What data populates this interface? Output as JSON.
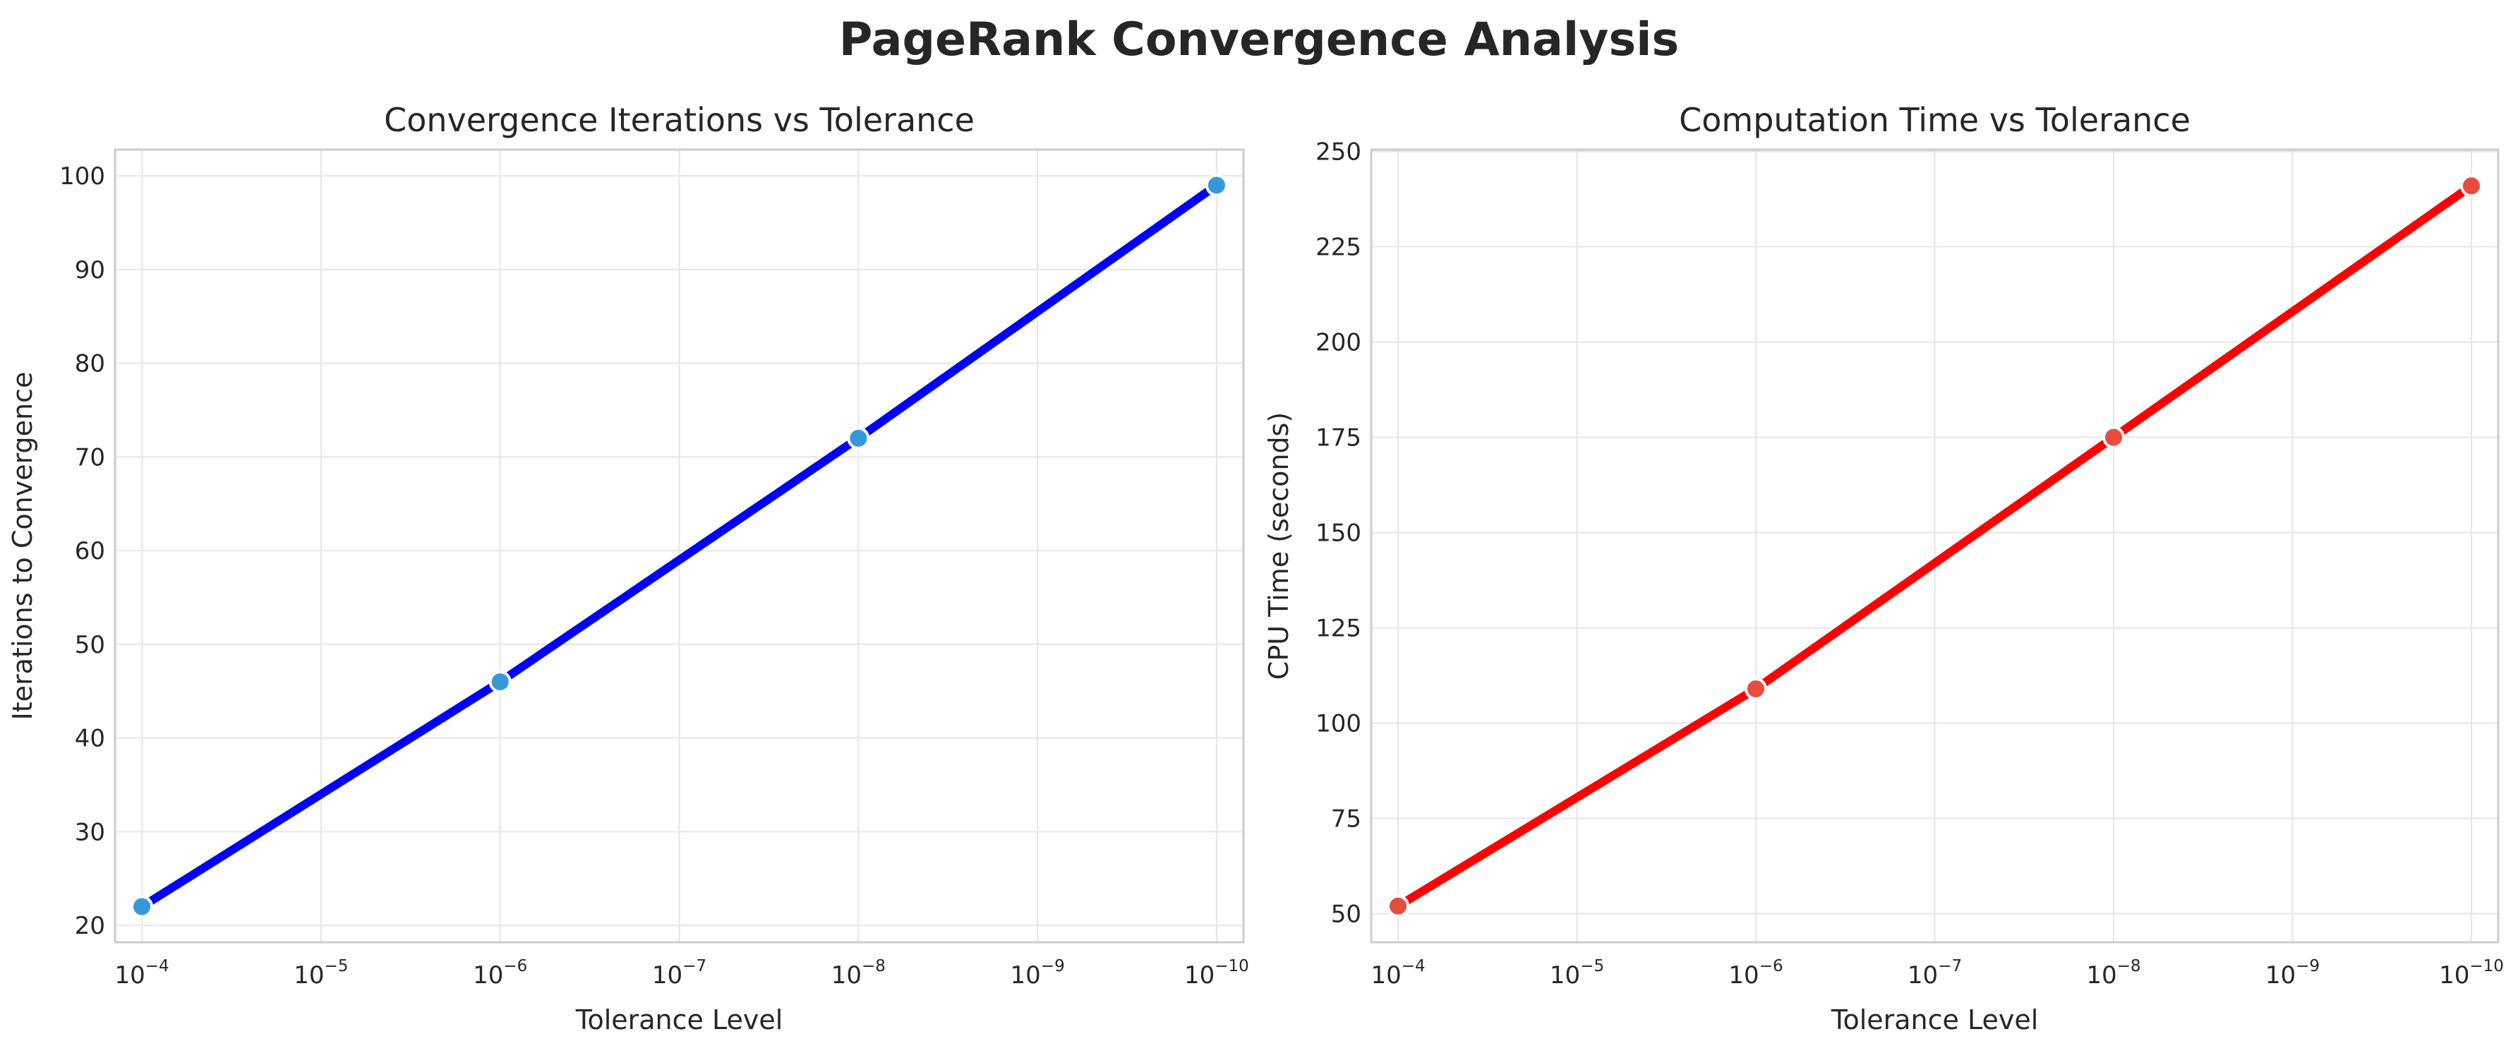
{
  "figure": {
    "title": "PageRank Convergence Analysis"
  },
  "chart_data": [
    {
      "type": "line",
      "title": "Convergence Iterations vs Tolerance",
      "xlabel": "Tolerance Level",
      "ylabel": "Iterations to Convergence",
      "xscale": "log",
      "xaxis_inverted": true,
      "x": [
        0.0001,
        1e-06,
        1e-08,
        1e-10
      ],
      "series": [
        {
          "values": [
            22,
            46,
            72,
            99
          ],
          "line_color": "#0000ff",
          "marker_color": "#3498db"
        }
      ],
      "xticks": [
        {
          "base": "10",
          "exp": "−4"
        },
        {
          "base": "10",
          "exp": "−5"
        },
        {
          "base": "10",
          "exp": "−6"
        },
        {
          "base": "10",
          "exp": "−7"
        },
        {
          "base": "10",
          "exp": "−8"
        },
        {
          "base": "10",
          "exp": "−9"
        },
        {
          "base": "10",
          "exp": "−10"
        }
      ],
      "yticks": [
        20,
        30,
        40,
        50,
        60,
        70,
        80,
        90,
        100
      ],
      "ylim": [
        18.2,
        102.8
      ],
      "grid": true,
      "legend": "none"
    },
    {
      "type": "line",
      "title": "Computation Time vs Tolerance",
      "xlabel": "Tolerance Level",
      "ylabel": "CPU Time (seconds)",
      "xscale": "log",
      "xaxis_inverted": true,
      "x": [
        0.0001,
        1e-06,
        1e-08,
        1e-10
      ],
      "series": [
        {
          "values": [
            52,
            109,
            175,
            241
          ],
          "line_color": "#ff0000",
          "marker_color": "#e74c3c"
        }
      ],
      "xticks": [
        {
          "base": "10",
          "exp": "−4"
        },
        {
          "base": "10",
          "exp": "−5"
        },
        {
          "base": "10",
          "exp": "−6"
        },
        {
          "base": "10",
          "exp": "−7"
        },
        {
          "base": "10",
          "exp": "−8"
        },
        {
          "base": "10",
          "exp": "−9"
        },
        {
          "base": "10",
          "exp": "−10"
        }
      ],
      "yticks": [
        50,
        75,
        100,
        125,
        150,
        175,
        200,
        225,
        250
      ],
      "ylim": [
        42.5,
        250.5
      ],
      "grid": true,
      "legend": "none"
    }
  ]
}
